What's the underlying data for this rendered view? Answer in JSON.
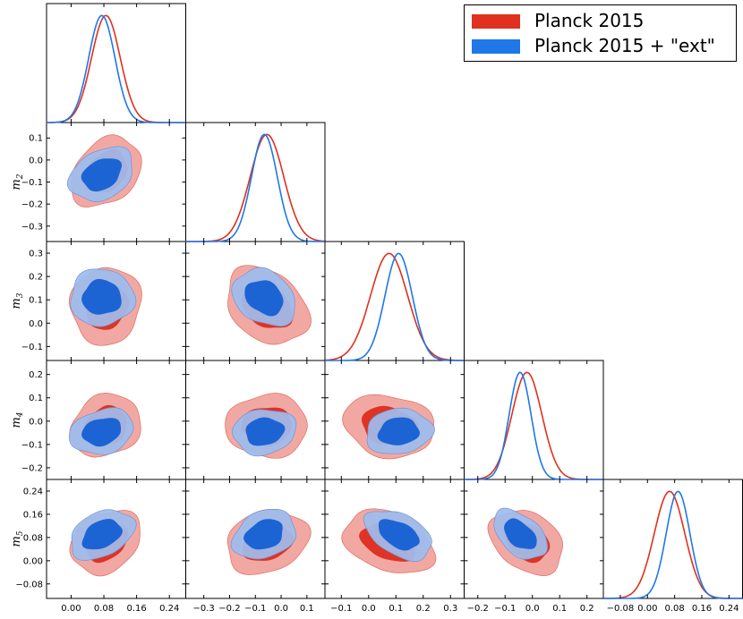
{
  "legend": {
    "entries": [
      {
        "label": "Planck 2015",
        "color": "#e0301e"
      },
      {
        "label": "Planck 2015 + \"ext\"",
        "color": "#1f77e8"
      }
    ]
  },
  "colors": {
    "planck_fill_outer": "#f2a8a2",
    "planck_fill_inner": "#de3325",
    "ext_fill_outer": "#9fbcec",
    "ext_fill_inner": "#1c64d4",
    "planck_line": "#e0301e",
    "ext_line": "#1f77e8"
  },
  "chart_data": {
    "type": "triangle-corner-plot",
    "parameters": [
      {
        "name": "m",
        "sub": "1",
        "range": [
          -0.06,
          0.28
        ],
        "ticks": [
          "0.00",
          "0.08",
          "0.16",
          "0.24"
        ],
        "tick_values": [
          0.0,
          0.08,
          0.16,
          0.24
        ]
      },
      {
        "name": "m",
        "sub": "2",
        "range": [
          -0.37,
          0.17
        ],
        "ticks": [
          "−0.3",
          "−0.2",
          "−0.1",
          "0.0",
          "0.1"
        ],
        "tick_values": [
          -0.3,
          -0.2,
          -0.1,
          0.0,
          0.1
        ],
        "y_ticks": [
          "0.1",
          "0.0",
          "−0.1",
          "−0.2",
          "−0.3"
        ],
        "y_tick_values": [
          0.1,
          0.0,
          -0.1,
          -0.2,
          -0.3
        ]
      },
      {
        "name": "m",
        "sub": "3",
        "range": [
          -0.16,
          0.35
        ],
        "ticks": [
          "−0.1",
          "0.0",
          "0.1",
          "0.2",
          "0.3"
        ],
        "tick_values": [
          -0.1,
          0.0,
          0.1,
          0.2,
          0.3
        ],
        "y_ticks": [
          "0.3",
          "0.2",
          "0.1",
          "0.0",
          "−0.1"
        ],
        "y_tick_values": [
          0.3,
          0.2,
          0.1,
          0.0,
          -0.1
        ]
      },
      {
        "name": "m",
        "sub": "4",
        "range": [
          -0.25,
          0.26
        ],
        "ticks": [
          "−0.2",
          "−0.1",
          "0.0",
          "0.1",
          "0.2"
        ],
        "tick_values": [
          -0.2,
          -0.1,
          0.0,
          0.1,
          0.2
        ],
        "y_ticks": [
          "0.2",
          "0.1",
          "0.0",
          "−0.1",
          "−0.2"
        ],
        "y_tick_values": [
          0.2,
          0.1,
          0.0,
          -0.1,
          -0.2
        ]
      },
      {
        "name": "m",
        "sub": "5",
        "range": [
          -0.13,
          0.28
        ],
        "ticks": [
          "−0.08",
          "0.00",
          "0.08",
          "0.16",
          "0.24"
        ],
        "tick_values": [
          -0.08,
          0.0,
          0.08,
          0.16,
          0.24
        ],
        "y_ticks": [
          "0.24",
          "0.16",
          "0.08",
          "0.00",
          "−0.08"
        ],
        "y_tick_values": [
          0.24,
          0.16,
          0.08,
          0.0,
          -0.08
        ]
      }
    ],
    "series": [
      {
        "name": "Planck 2015",
        "means": [
          0.085,
          -0.055,
          0.075,
          -0.02,
          0.065
        ],
        "sigmas": [
          0.035,
          0.065,
          0.068,
          0.055,
          0.045
        ],
        "correlations": {
          "1-2": 0.3,
          "1-3": 0.05,
          "2-3": -0.3,
          "1-4": 0.15,
          "2-4": 0.0,
          "3-4": -0.15,
          "1-5": 0.25,
          "2-5": 0.2,
          "3-5": -0.3,
          "4-5": -0.3
        }
      },
      {
        "name": "Planck 2015 + \"ext\"",
        "means": [
          0.075,
          -0.065,
          0.11,
          -0.045,
          0.09
        ],
        "sigmas": [
          0.032,
          0.05,
          0.05,
          0.04,
          0.035
        ],
        "correlations": {
          "1-2": 0.3,
          "1-3": 0.0,
          "2-3": -0.25,
          "1-4": 0.2,
          "2-4": 0.1,
          "3-4": 0.1,
          "1-5": 0.35,
          "2-5": 0.25,
          "3-5": -0.45,
          "4-5": -0.45
        }
      }
    ],
    "contour_levels": [
      "68%",
      "95%"
    ],
    "grid": false
  }
}
